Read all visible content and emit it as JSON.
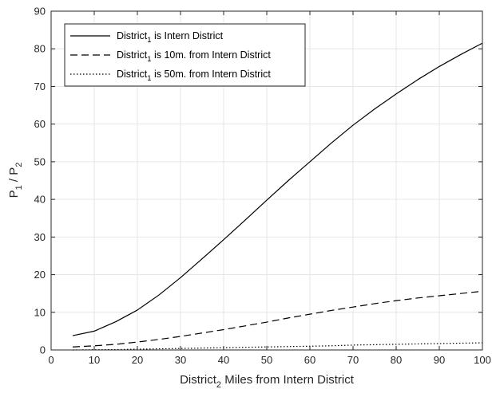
{
  "chart_data": {
    "type": "line",
    "title": "",
    "xlabel": {
      "main": "District",
      "sub": "2",
      "rest": " Miles from Intern District"
    },
    "ylabel": {
      "p1": "P",
      "s1": "1",
      "mid": " / P",
      "s2": "2"
    },
    "xlim": [
      0,
      100
    ],
    "ylim": [
      0,
      90
    ],
    "xticks": [
      0,
      10,
      20,
      30,
      40,
      50,
      60,
      70,
      80,
      90,
      100
    ],
    "yticks": [
      0,
      10,
      20,
      30,
      40,
      50,
      60,
      70,
      80,
      90
    ],
    "grid": true,
    "legend_position": "top-left",
    "x": [
      5,
      10,
      15,
      20,
      25,
      30,
      35,
      40,
      45,
      50,
      55,
      60,
      65,
      70,
      75,
      80,
      85,
      90,
      95,
      100
    ],
    "series": [
      {
        "legend": {
          "main": "District",
          "sub": "1",
          "rest": " is Intern District"
        },
        "style": "solid",
        "values": [
          3.8,
          5.0,
          7.5,
          10.6,
          14.6,
          19.2,
          24.2,
          29.3,
          34.5,
          39.8,
          45.0,
          50.0,
          55.0,
          59.7,
          64.0,
          68.0,
          71.8,
          75.3,
          78.5,
          81.5
        ]
      },
      {
        "legend": {
          "main": "District",
          "sub": "1",
          "rest": " is 10m. from Intern District"
        },
        "style": "dashed",
        "values": [
          0.8,
          1.1,
          1.5,
          2.1,
          2.8,
          3.6,
          4.5,
          5.4,
          6.4,
          7.4,
          8.5,
          9.5,
          10.5,
          11.4,
          12.3,
          13.1,
          13.8,
          14.4,
          15.0,
          15.6
        ]
      },
      {
        "legend": {
          "main": "District",
          "sub": "1",
          "rest": " is 50m. from Intern District"
        },
        "style": "dotted",
        "values": [
          0.0,
          0.05,
          0.1,
          0.2,
          0.3,
          0.4,
          0.5,
          0.6,
          0.7,
          0.8,
          0.9,
          1.0,
          1.1,
          1.3,
          1.4,
          1.5,
          1.6,
          1.7,
          1.8,
          1.9
        ]
      }
    ],
    "colors": {
      "line": "#000000",
      "grid": "#e6e6e6",
      "axis": "#262626",
      "background": "#ffffff"
    }
  }
}
